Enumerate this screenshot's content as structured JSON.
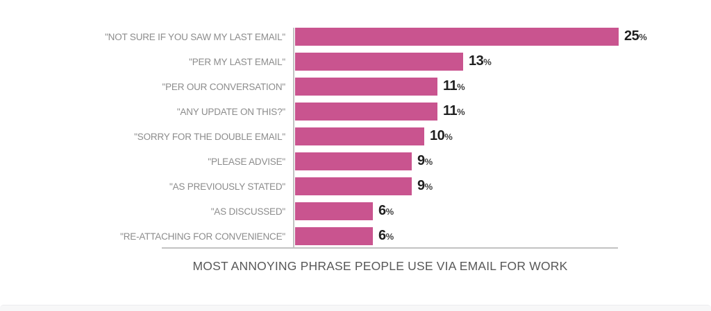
{
  "chart_data": {
    "type": "bar",
    "orientation": "horizontal",
    "title": "MOST ANNOYING PHRASE PEOPLE USE VIA EMAIL FOR WORK",
    "categories": [
      "\"NOT SURE IF YOU SAW MY LAST EMAIL\"",
      "\"PER MY LAST EMAIL\"",
      "\"PER OUR CONVERSATION\"",
      "\"ANY UPDATE ON THIS?\"",
      "\"SORRY FOR THE DOUBLE EMAIL\"",
      "\"PLEASE ADVISE\"",
      "\"AS PREVIOUSLY STATED\"",
      "\"AS DISCUSSED\"",
      "\"RE-ATTACHING FOR CONVENIENCE\""
    ],
    "values": [
      25,
      13,
      11,
      11,
      10,
      9,
      9,
      6,
      6
    ],
    "value_suffix": "%",
    "xlim": [
      0,
      25
    ],
    "grid": false,
    "legend": false,
    "colors": {
      "bar": "#C9548F",
      "category_label": "#8C8C8C",
      "value_number": "#1F1F1F",
      "value_suffix": "#3F3F3F",
      "axis_line": "#C2C2C2",
      "title": "#585858",
      "bottom_band": "#F7F7F8"
    }
  }
}
